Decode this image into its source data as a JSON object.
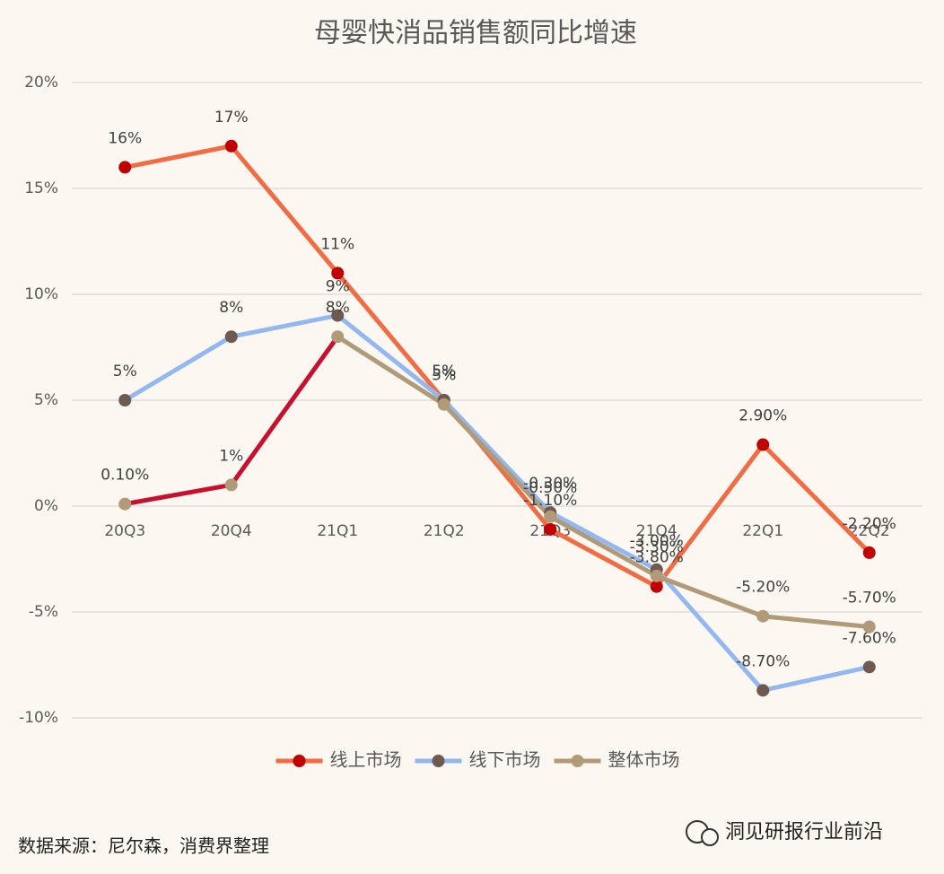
{
  "chart_data": {
    "type": "line",
    "title": "母婴快消品销售额同比增速",
    "categories": [
      "20Q3",
      "20Q4",
      "21Q1",
      "21Q2",
      "21Q3",
      "21Q4",
      "22Q1",
      "22Q2"
    ],
    "series": [
      {
        "name": "线上市场",
        "color": "#f26b43",
        "marker_color": "#c00000",
        "values": [
          16,
          17,
          11,
          5,
          -1.1,
          -3.8,
          2.9,
          -2.2
        ],
        "value_labels": [
          "16%",
          "17%",
          "11%",
          "5%",
          "-1.10%",
          "-3.80%",
          "2.90%",
          "-2.20%"
        ]
      },
      {
        "name": "线下市场",
        "color": "#93b8f0",
        "marker_color": "#6e5a50",
        "values": [
          5,
          8,
          9,
          5,
          -0.3,
          -3.0,
          -8.7,
          -7.6
        ],
        "value_labels": [
          "5%",
          "8%",
          "9%",
          "5%",
          "-0.30%",
          "-3.00%",
          "-8.70%",
          "-7.60%"
        ]
      },
      {
        "name": "整体市场",
        "color": "#b09a78",
        "marker_color": "#b09a78",
        "segment_colors": [
          "#c8102e",
          "#c8102e",
          "#b09a78",
          "#b09a78",
          "#b09a78",
          "#b09a78",
          "#b09a78"
        ],
        "values": [
          0.1,
          1,
          8,
          4.8,
          -0.5,
          -3.3,
          -5.2,
          -5.7
        ],
        "value_labels": [
          "0.10%",
          "1%",
          "8%",
          "5%",
          "-0.50%",
          "-3.30%",
          "-5.20%",
          "-5.70%"
        ]
      }
    ],
    "ylim": [
      -10,
      20
    ],
    "yticks": [
      {
        "value": -10,
        "label": "-10%"
      },
      {
        "value": -5,
        "label": "-5%"
      },
      {
        "value": 0,
        "label": "0%"
      },
      {
        "value": 5,
        "label": "5%"
      },
      {
        "value": 10,
        "label": "10%"
      },
      {
        "value": 15,
        "label": "15%"
      },
      {
        "value": 20,
        "label": "20%"
      }
    ],
    "grid": true,
    "legend": "bottom",
    "source": "数据来源：尼尔森，消费界整理",
    "watermark": "洞见研报行业前沿"
  }
}
